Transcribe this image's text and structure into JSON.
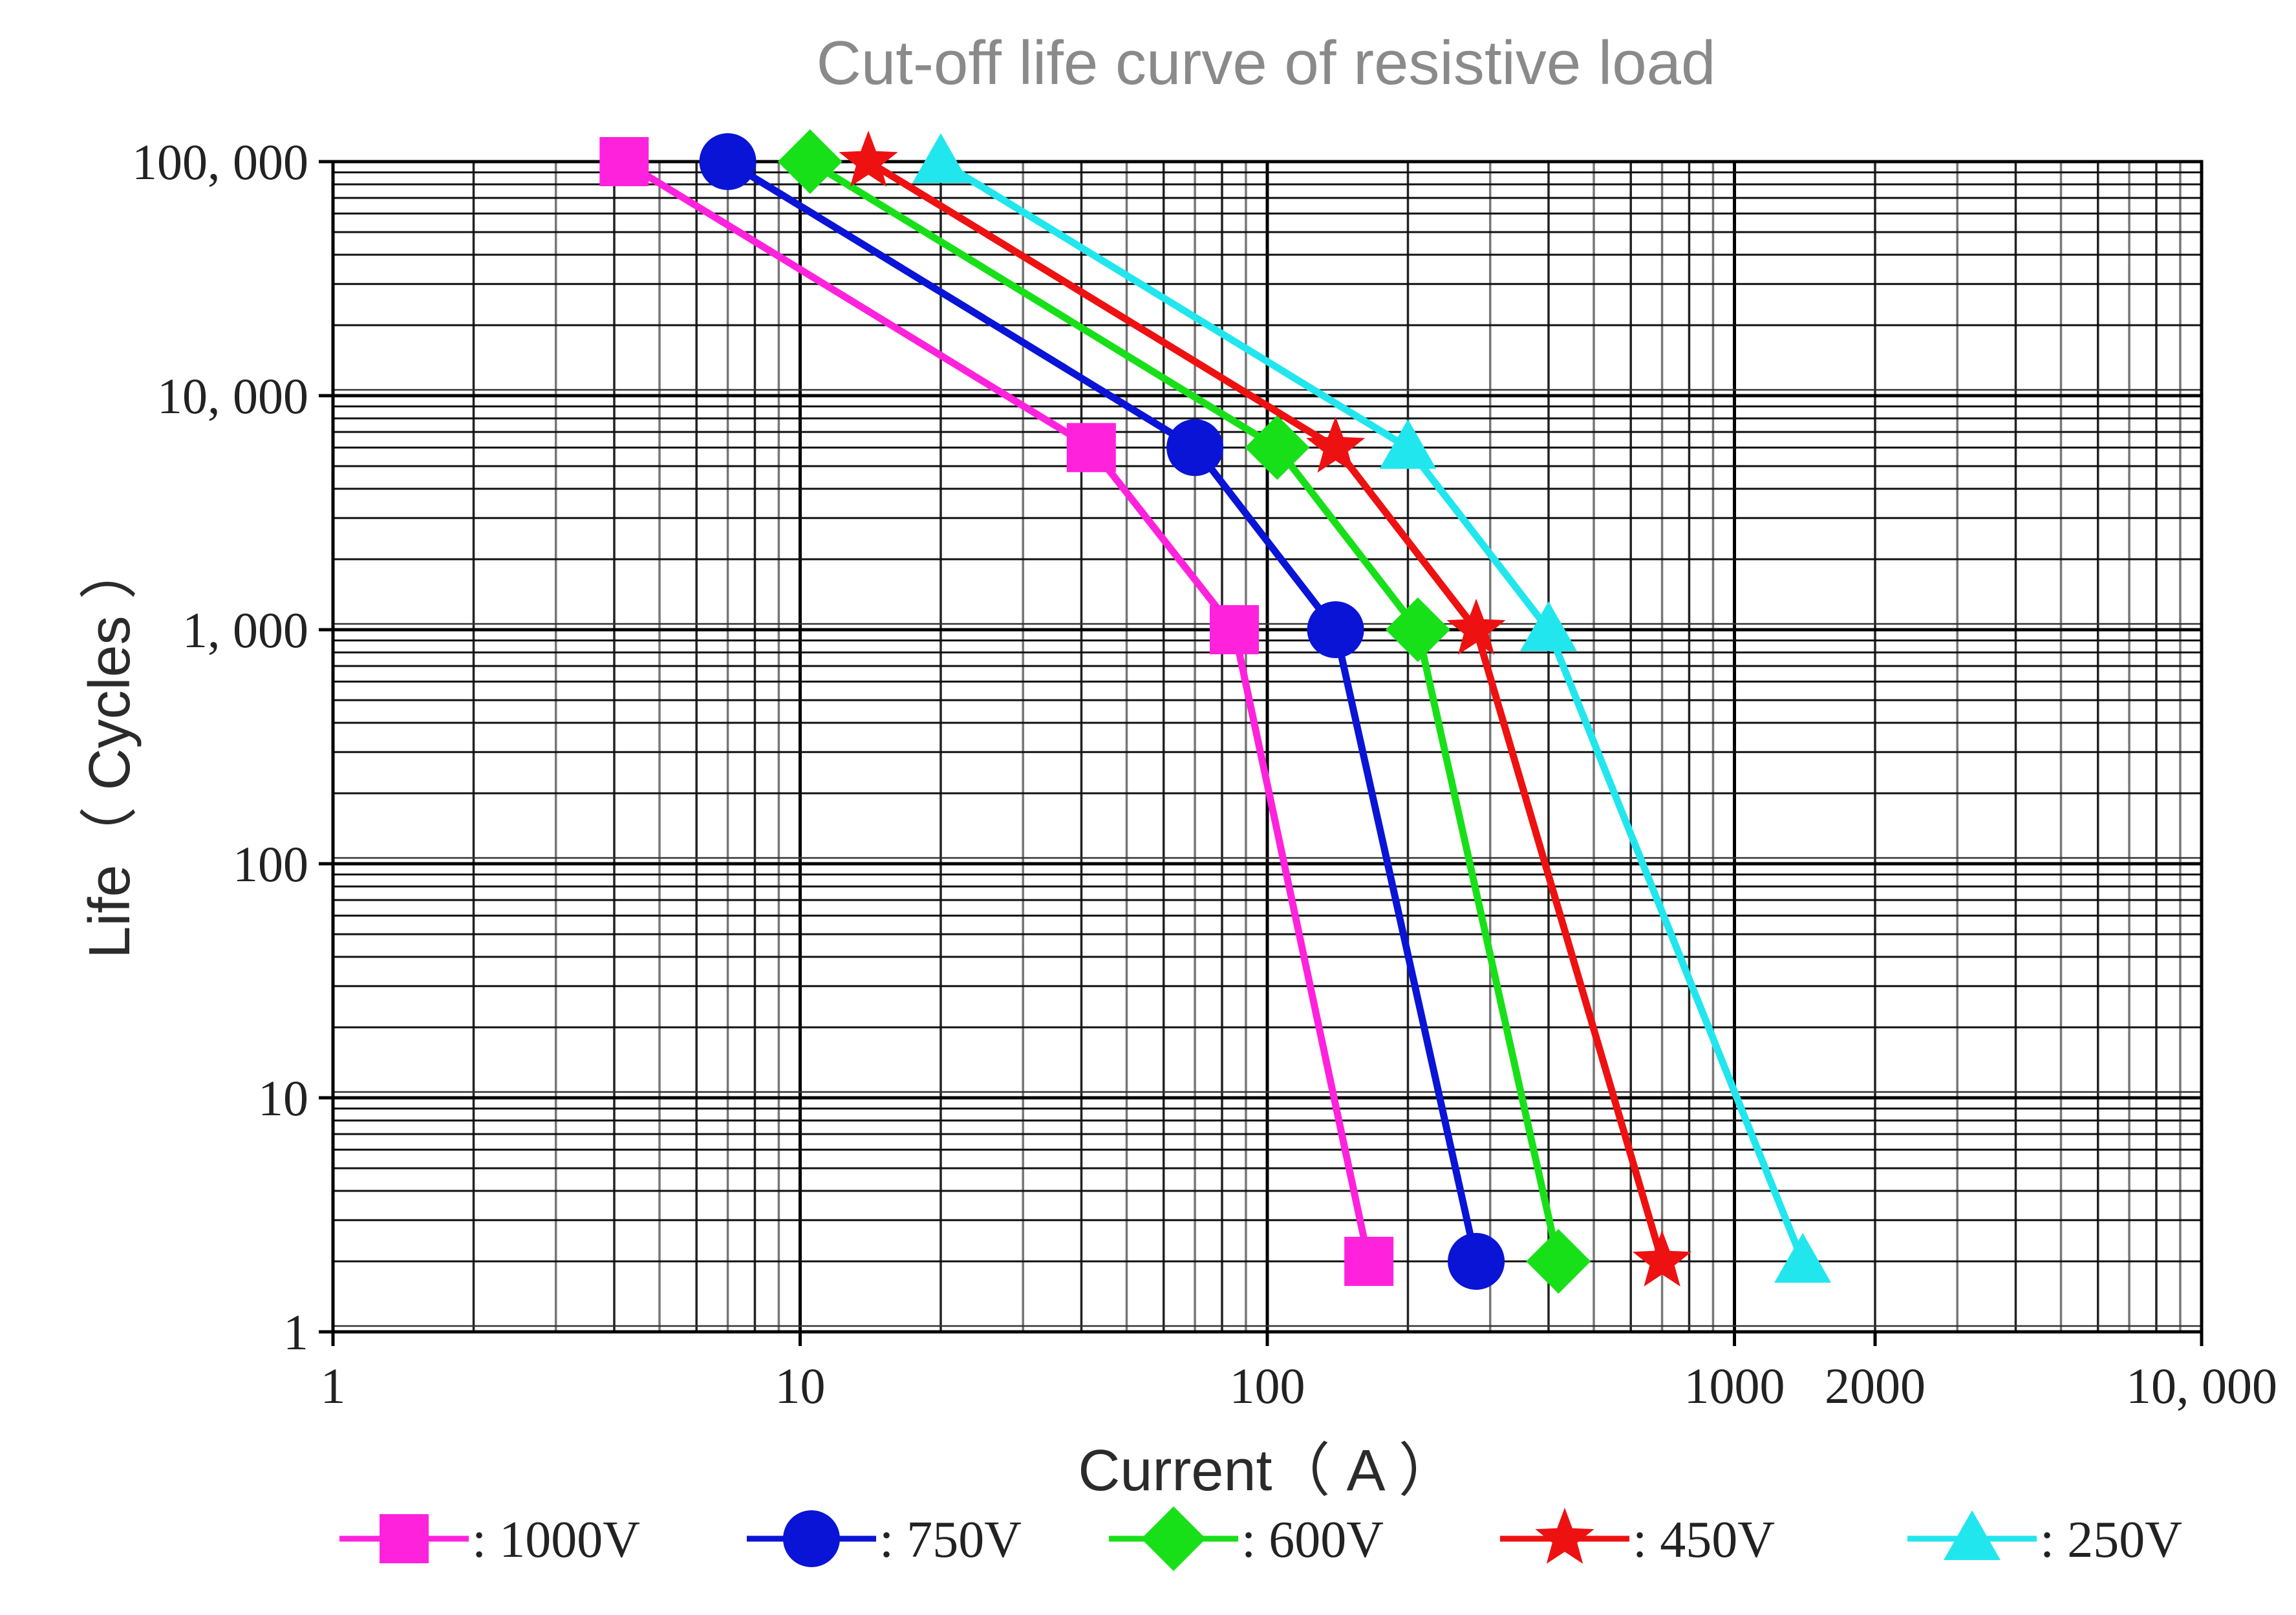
{
  "chart_data": {
    "type": "line",
    "title": "Cut-off life curve of resistive load",
    "xlabel": "Current（ A ）",
    "ylabel": "Life（ Cycles ）",
    "x_scale": "log",
    "y_scale": "log",
    "xlim": [
      1,
      10000
    ],
    "ylim": [
      1,
      100000
    ],
    "grid": true,
    "legend_position": "bottom",
    "x_ticks": [
      {
        "value": 1,
        "label": "1"
      },
      {
        "value": 10,
        "label": "10"
      },
      {
        "value": 100,
        "label": "100"
      },
      {
        "value": 1000,
        "label": "1000"
      },
      {
        "value": 2000,
        "label": "2000"
      },
      {
        "value": 10000,
        "label": "10, 000"
      }
    ],
    "y_ticks": [
      {
        "value": 1,
        "label": "1"
      },
      {
        "value": 10,
        "label": "10"
      },
      {
        "value": 100,
        "label": "100"
      },
      {
        "value": 1000,
        "label": "1, 000"
      },
      {
        "value": 10000,
        "label": "10, 000"
      },
      {
        "value": 100000,
        "label": "100, 000"
      }
    ],
    "series": [
      {
        "name": ": 1000V",
        "color": "#ff22dd",
        "marker": "square",
        "points": [
          [
            4.2,
            100000
          ],
          [
            42,
            6000
          ],
          [
            85,
            1000
          ],
          [
            165,
            2
          ]
        ]
      },
      {
        "name": ": 750V",
        "color": "#0a14d6",
        "marker": "circle",
        "points": [
          [
            7,
            100000
          ],
          [
            70,
            6000
          ],
          [
            140,
            1000
          ],
          [
            280,
            2
          ]
        ]
      },
      {
        "name": ": 600V",
        "color": "#18e018",
        "marker": "diamond",
        "points": [
          [
            10.5,
            100000
          ],
          [
            105,
            6000
          ],
          [
            210,
            1000
          ],
          [
            420,
            2
          ]
        ]
      },
      {
        "name": ": 450V",
        "color": "#ee1111",
        "marker": "star",
        "points": [
          [
            14,
            100000
          ],
          [
            140,
            6000
          ],
          [
            280,
            1000
          ],
          [
            700,
            2
          ]
        ]
      },
      {
        "name": ": 250V",
        "color": "#22e6ee",
        "marker": "triangle",
        "points": [
          [
            20,
            100000
          ],
          [
            200,
            6000
          ],
          [
            400,
            1000
          ],
          [
            1400,
            2
          ]
        ]
      }
    ]
  }
}
